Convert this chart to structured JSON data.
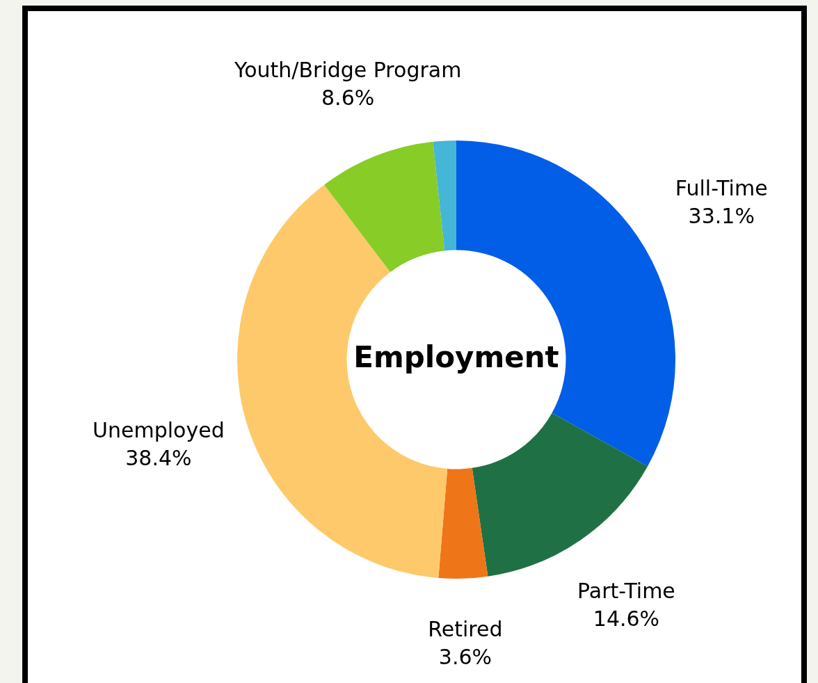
{
  "chart_data": {
    "type": "donut",
    "title": "Employment",
    "categories": [
      "Full-Time",
      "Part-Time",
      "Retired",
      "Unemployed",
      "Youth/Bridge Program",
      null
    ],
    "values": [
      33.1,
      14.6,
      3.6,
      38.4,
      8.6,
      1.7
    ],
    "value_labels": [
      "33.1%",
      "14.6%",
      "3.6%",
      "38.4%",
      "8.6%",
      null
    ],
    "colors": [
      "#025ee6",
      "#1f7145",
      "#ef7519",
      "#fec96a",
      "#88cc28",
      "#45b5d8"
    ]
  }
}
